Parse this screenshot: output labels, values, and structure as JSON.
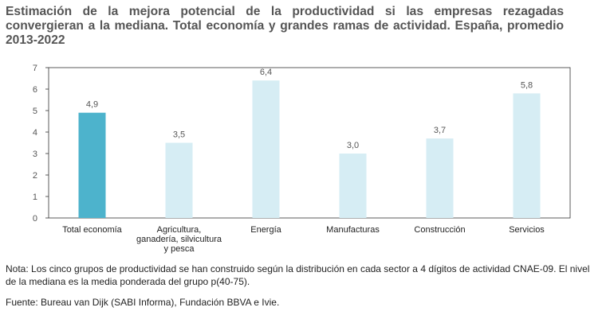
{
  "title": "Estimación de la mejora potencial de la productividad si las empresas rezagadas convergieran a la mediana. Total economía y grandes ramas de actividad. España, promedio 2013-2022",
  "note": "Nota: Los cinco grupos de productividad se han construido según la distribución en cada sector a 4 dígitos de actividad CNAE-09. El nivel de la mediana es la media ponderada del grupo p(40-75).",
  "source": "Fuente: Bureau van Dijk (SABI Informa), Fundación BBVA e Ivie.",
  "colors": {
    "highlight": "#4db3cc",
    "default": "#d6edf4",
    "frame": "#333333",
    "label": "#555555"
  },
  "chart_data": {
    "type": "bar",
    "categories": [
      [
        "Total economía"
      ],
      [
        "Agricultura,",
        "ganadería, silvicultura",
        "y pesca"
      ],
      [
        "Energía"
      ],
      [
        "Manufacturas"
      ],
      [
        "Construcción"
      ],
      [
        "Servicios"
      ]
    ],
    "values": [
      4.9,
      3.5,
      6.4,
      3.0,
      3.7,
      5.8
    ],
    "value_labels": [
      "4,9",
      "3,5",
      "6,4",
      "3,0",
      "3,7",
      "5,8"
    ],
    "highlight_index": 0,
    "ylim": [
      0,
      7
    ],
    "yticks": [
      0,
      1,
      2,
      3,
      4,
      5,
      6,
      7
    ],
    "grid": false
  }
}
